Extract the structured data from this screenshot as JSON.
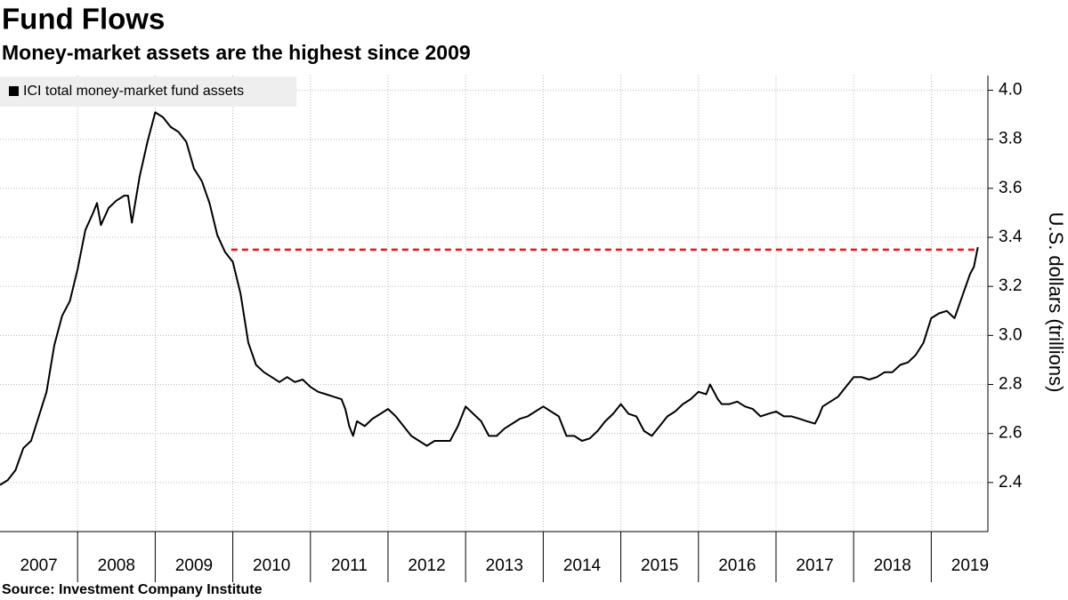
{
  "chart_data": {
    "type": "line",
    "title": "Fund Flows",
    "subtitle": "Money-market assets are the highest since 2009",
    "y_label": "U.S. dollars (trillions)",
    "source": "Source: Investment Company Institute",
    "x": [
      2007.0,
      2007.1,
      2007.2,
      2007.3,
      2007.4,
      2007.5,
      2007.6,
      2007.7,
      2007.8,
      2007.9,
      2008.0,
      2008.1,
      2008.2,
      2008.25,
      2008.3,
      2008.4,
      2008.5,
      2008.6,
      2008.65,
      2008.7,
      2008.8,
      2008.9,
      2009.0,
      2009.1,
      2009.2,
      2009.3,
      2009.4,
      2009.5,
      2009.6,
      2009.7,
      2009.8,
      2009.9,
      2010.0,
      2010.1,
      2010.2,
      2010.3,
      2010.4,
      2010.5,
      2010.6,
      2010.7,
      2010.8,
      2010.9,
      2011.0,
      2011.1,
      2011.2,
      2011.3,
      2011.4,
      2011.45,
      2011.5,
      2011.55,
      2011.6,
      2011.7,
      2011.8,
      2011.9,
      2012.0,
      2012.1,
      2012.2,
      2012.3,
      2012.4,
      2012.5,
      2012.6,
      2012.7,
      2012.8,
      2012.9,
      2013.0,
      2013.1,
      2013.2,
      2013.3,
      2013.4,
      2013.5,
      2013.6,
      2013.7,
      2013.8,
      2013.9,
      2014.0,
      2014.1,
      2014.2,
      2014.3,
      2014.4,
      2014.5,
      2014.6,
      2014.7,
      2014.8,
      2014.9,
      2015.0,
      2015.1,
      2015.2,
      2015.3,
      2015.4,
      2015.5,
      2015.6,
      2015.7,
      2015.8,
      2015.9,
      2016.0,
      2016.1,
      2016.15,
      2016.25,
      2016.3,
      2016.4,
      2016.5,
      2016.6,
      2016.7,
      2016.8,
      2016.9,
      2017.0,
      2017.1,
      2017.2,
      2017.3,
      2017.4,
      2017.5,
      2017.55,
      2017.6,
      2017.7,
      2017.8,
      2017.9,
      2018.0,
      2018.1,
      2018.2,
      2018.3,
      2018.4,
      2018.5,
      2018.6,
      2018.7,
      2018.8,
      2018.9,
      2019.0,
      2019.1,
      2019.2,
      2019.3,
      2019.4,
      2019.5,
      2019.55,
      2019.6
    ],
    "series": [
      {
        "name": "ICI total money-market fund assets",
        "color": "#000000",
        "values": [
          2.39,
          2.41,
          2.45,
          2.54,
          2.57,
          2.67,
          2.77,
          2.96,
          3.08,
          3.14,
          3.27,
          3.43,
          3.5,
          3.54,
          3.45,
          3.52,
          3.55,
          3.57,
          3.57,
          3.46,
          3.65,
          3.79,
          3.91,
          3.89,
          3.85,
          3.83,
          3.79,
          3.68,
          3.63,
          3.54,
          3.41,
          3.34,
          3.3,
          3.17,
          2.97,
          2.88,
          2.85,
          2.83,
          2.81,
          2.83,
          2.81,
          2.82,
          2.79,
          2.77,
          2.76,
          2.75,
          2.74,
          2.7,
          2.63,
          2.59,
          2.65,
          2.63,
          2.66,
          2.68,
          2.7,
          2.67,
          2.63,
          2.59,
          2.57,
          2.55,
          2.57,
          2.57,
          2.57,
          2.63,
          2.71,
          2.68,
          2.65,
          2.59,
          2.59,
          2.62,
          2.64,
          2.66,
          2.67,
          2.69,
          2.71,
          2.69,
          2.67,
          2.59,
          2.59,
          2.57,
          2.58,
          2.61,
          2.65,
          2.68,
          2.72,
          2.68,
          2.67,
          2.61,
          2.59,
          2.63,
          2.67,
          2.69,
          2.72,
          2.74,
          2.77,
          2.76,
          2.8,
          2.74,
          2.72,
          2.72,
          2.73,
          2.71,
          2.7,
          2.67,
          2.68,
          2.69,
          2.67,
          2.67,
          2.66,
          2.65,
          2.64,
          2.67,
          2.71,
          2.73,
          2.75,
          2.79,
          2.83,
          2.83,
          2.82,
          2.83,
          2.85,
          2.85,
          2.88,
          2.89,
          2.92,
          2.97,
          3.07,
          3.09,
          3.1,
          3.07,
          3.16,
          3.25,
          3.28,
          3.36
        ]
      }
    ],
    "reference_line": {
      "value": 3.35,
      "from": 2009.98,
      "to": 2019.6,
      "color": "#e8141c"
    },
    "xlim": [
      2007,
      2019.73
    ],
    "xticks": [
      2007,
      2008,
      2009,
      2010,
      2011,
      2012,
      2013,
      2014,
      2015,
      2016,
      2017,
      2018,
      2019
    ],
    "ylim": [
      2.2,
      4.06
    ],
    "yticks": [
      2.4,
      2.6,
      2.8,
      {
        "value": 3,
        "label": "3.0"
      },
      3.2,
      3.4,
      3.6,
      3.8,
      {
        "value": 4,
        "label": "4.0"
      }
    ],
    "grid": true
  }
}
